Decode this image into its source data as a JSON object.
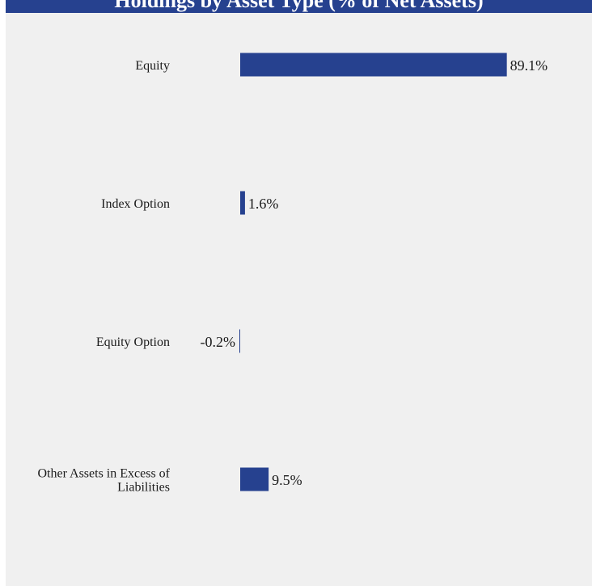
{
  "header": {
    "title": "Holdings by Asset Type (% of Net Assets)"
  },
  "colors": {
    "bar": "#26418f",
    "header": "#26418f",
    "panel": "#f0f0f0"
  },
  "chart_data": {
    "type": "bar",
    "orientation": "horizontal",
    "title": "",
    "categories": [
      [
        "Equity"
      ],
      [
        "Index Option"
      ],
      [
        "Equity Option"
      ],
      [
        "Other Assets in Excess of",
        "Liabilities"
      ]
    ],
    "values": [
      89.1,
      1.6,
      -0.2,
      9.5
    ],
    "value_labels": [
      "89.1%",
      "1.6%",
      "-0.2%",
      "9.5%"
    ],
    "unit": "%",
    "grid": false,
    "legend": "none"
  }
}
